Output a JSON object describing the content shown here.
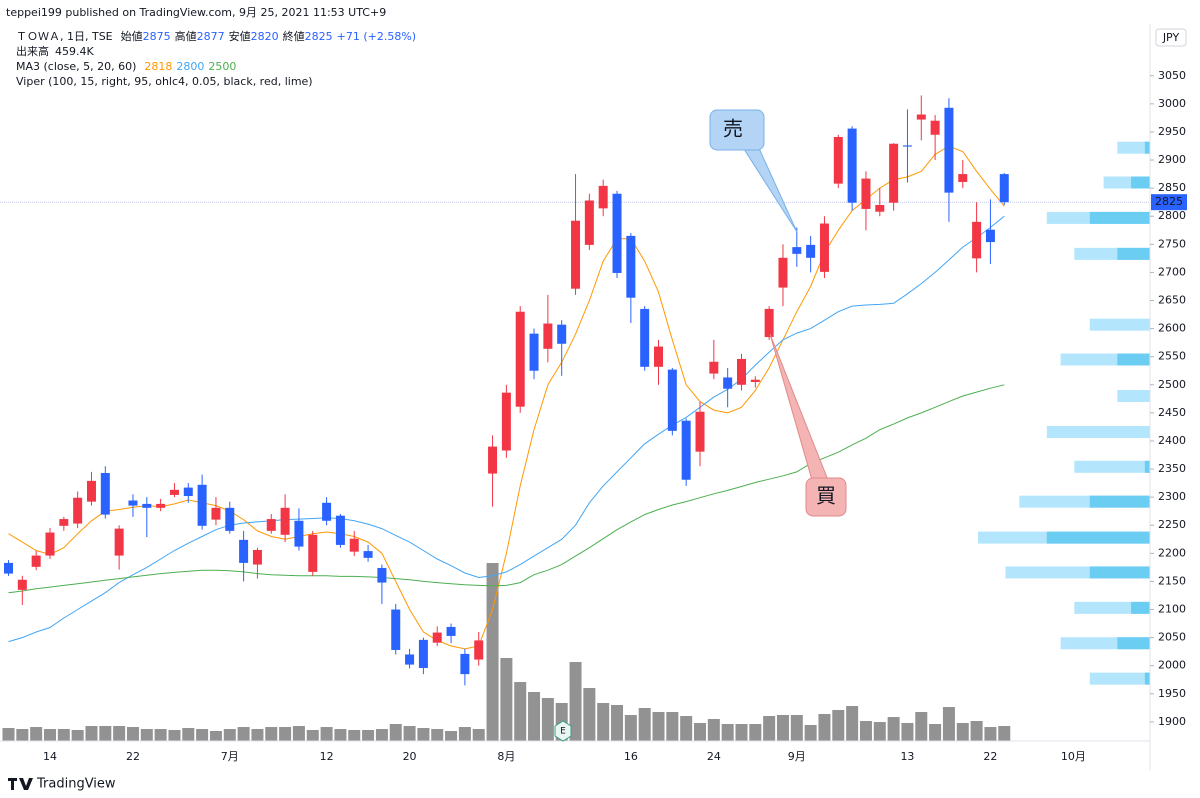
{
  "chart_data": {
    "type": "candlestick",
    "published": "teppei199 published on TradingView.com, 9月 25, 2021 11:53 UTC+9",
    "title": "ＴＯＷＡ, 1日, TSE",
    "ohlc_labels": [
      "始値",
      "高値",
      "安値",
      "終値"
    ],
    "change_text": "+71 (+2.58%)",
    "currency": "JPY",
    "up_color": "#f23645",
    "down_color": "#2962ff",
    "categories": [
      null,
      null,
      null,
      "14",
      null,
      null,
      null,
      null,
      null,
      "22",
      null,
      null,
      null,
      null,
      null,
      null,
      "7月",
      null,
      null,
      null,
      null,
      null,
      null,
      "12",
      null,
      null,
      null,
      null,
      null,
      "20",
      null,
      null,
      null,
      null,
      null,
      null,
      "8月",
      null,
      null,
      null,
      null,
      null,
      null,
      null,
      null,
      "16",
      null,
      null,
      null,
      null,
      null,
      "24",
      null,
      null,
      null,
      null,
      null,
      "9月",
      null,
      null,
      null,
      null,
      null,
      null,
      null,
      "13",
      null,
      null,
      null,
      null,
      null,
      "22",
      null,
      null,
      null,
      null,
      null,
      "10月",
      null,
      null,
      null,
      null,
      null
    ],
    "open": [
      2183,
      2135,
      2176,
      2196,
      2249,
      2253,
      2292,
      2343,
      2196,
      2294,
      2288,
      2281,
      2304,
      2317,
      2322,
      2260,
      2281,
      2224,
      2180,
      2240,
      2233,
      2258,
      2167,
      2290,
      2267,
      2203,
      2204,
      2174,
      2100,
      2020,
      2046,
      2041,
      2069,
      2021,
      2011,
      2342,
      2383,
      2461,
      2591,
      2564,
      2607,
      2671,
      2749,
      2814,
      2840,
      2765,
      2635,
      2532,
      2527,
      2436,
      2381,
      2520,
      2513,
      2500,
      2505,
      2585,
      2673,
      2745,
      2749,
      2701,
      2858,
      2956,
      2813,
      2808,
      2824,
      2926,
      2972,
      2945,
      2993,
      2861,
      2725,
      2776,
      2875,
      null,
      null,
      null,
      null,
      null,
      null,
      null,
      null,
      null,
      null
    ],
    "high": [
      2188,
      2160,
      2205,
      2245,
      2265,
      2310,
      2345,
      2355,
      2250,
      2305,
      2300,
      2297,
      2325,
      2325,
      2340,
      2300,
      2292,
      2240,
      2210,
      2270,
      2305,
      2280,
      2240,
      2300,
      2270,
      2240,
      2215,
      2180,
      2110,
      2030,
      2050,
      2070,
      2075,
      2030,
      2060,
      2410,
      2500,
      2640,
      2600,
      2660,
      2615,
      2875,
      2840,
      2865,
      2845,
      2770,
      2640,
      2580,
      2530,
      2440,
      2470,
      2580,
      2530,
      2555,
      2515,
      2640,
      2750,
      2780,
      2765,
      2800,
      2945,
      2960,
      2880,
      2850,
      2930,
      2990,
      3015,
      2980,
      3010,
      2900,
      2825,
      2830,
      2877,
      null,
      null,
      null,
      null,
      null,
      null,
      null,
      null,
      null,
      null
    ],
    "low": [
      2160,
      2108,
      2170,
      2190,
      2240,
      2245,
      2285,
      2262,
      2171,
      2265,
      2229,
      2275,
      2300,
      2290,
      2242,
      2250,
      2235,
      2150,
      2155,
      2235,
      2220,
      2205,
      2160,
      2250,
      2210,
      2195,
      2185,
      2110,
      2020,
      1995,
      1985,
      2035,
      2040,
      1965,
      2000,
      2283,
      2370,
      2450,
      2510,
      2540,
      2516,
      2660,
      2740,
      2800,
      2690,
      2610,
      2525,
      2500,
      2410,
      2320,
      2355,
      2510,
      2460,
      2490,
      2495,
      2580,
      2640,
      2710,
      2700,
      2690,
      2850,
      2810,
      2775,
      2800,
      2810,
      2860,
      2935,
      2900,
      2790,
      2850,
      2700,
      2715,
      2820,
      null,
      null,
      null,
      null,
      null,
      null,
      null,
      null,
      null,
      null
    ],
    "close": [
      2164,
      2153,
      2196,
      2237,
      2261,
      2299,
      2329,
      2269,
      2244,
      2285,
      2281,
      2288,
      2313,
      2302,
      2249,
      2281,
      2240,
      2183,
      2206,
      2261,
      2281,
      2212,
      2233,
      2258,
      2215,
      2226,
      2192,
      2148,
      2028,
      2002,
      1996,
      2059,
      2053,
      1985,
      2045,
      2390,
      2486,
      2630,
      2525,
      2609,
      2573,
      2792,
      2828,
      2854,
      2699,
      2655,
      2532,
      2568,
      2418,
      2331,
      2452,
      2541,
      2493,
      2546,
      2509,
      2635,
      2726,
      2733,
      2726,
      2787,
      2941,
      2824,
      2867,
      2820,
      2929,
      2924,
      2981,
      2970,
      2842,
      2875,
      2790,
      2754,
      2825,
      null,
      null,
      null,
      null,
      null,
      null,
      null,
      null,
      null,
      null
    ],
    "volume": {
      "name": "出来高",
      "value_label": "459.4K",
      "color": "#7f7f7f",
      "values": [
        398000,
        367000,
        428000,
        367000,
        367000,
        337000,
        459000,
        459000,
        459000,
        428000,
        367000,
        367000,
        337000,
        398000,
        367000,
        306000,
        367000,
        428000,
        367000,
        428000,
        428000,
        459000,
        337000,
        428000,
        367000,
        337000,
        337000,
        367000,
        520000,
        459000,
        398000,
        367000,
        306000,
        428000,
        367000,
        5447000,
        2540000,
        1805000,
        1499000,
        1316000,
        1163000,
        2417000,
        1622000,
        1163000,
        1102000,
        796000,
        1010000,
        887000,
        887000,
        765000,
        551000,
        673000,
        520000,
        520000,
        520000,
        765000,
        796000,
        796000,
        490000,
        826000,
        949000,
        1071000,
        612000,
        581000,
        734000,
        551000,
        887000,
        520000,
        1040000,
        551000,
        612000,
        428000,
        459400,
        null,
        null,
        null,
        null,
        null,
        null,
        null,
        null,
        null,
        null
      ]
    },
    "ma": {
      "name": "MA3 (close, 5, 20, 60)",
      "series": [
        {
          "color": "#ff9800",
          "values": [
            2235,
            2220,
            2205,
            2198,
            2210,
            2235,
            2258,
            2275,
            2278,
            2282,
            2285,
            2283,
            2288,
            2295,
            2290,
            2285,
            2275,
            2260,
            2240,
            2230,
            2225,
            2230,
            2235,
            2238,
            2235,
            2230,
            2220,
            2200,
            2150,
            2100,
            2060,
            2045,
            2035,
            2030,
            2035,
            2100,
            2200,
            2320,
            2420,
            2500,
            2540,
            2590,
            2650,
            2720,
            2760,
            2760,
            2720,
            2665,
            2580,
            2500,
            2470,
            2455,
            2450,
            2460,
            2490,
            2530,
            2580,
            2630,
            2675,
            2735,
            2775,
            2810,
            2830,
            2850,
            2865,
            2870,
            2880,
            2910,
            2925,
            2915,
            2880,
            2848,
            2818,
            null,
            null,
            null,
            null,
            null,
            null,
            null,
            null,
            null,
            null
          ]
        },
        {
          "color": "#42a5f5",
          "values": [
            2043,
            2050,
            2060,
            2068,
            2085,
            2100,
            2115,
            2130,
            2148,
            2162,
            2175,
            2190,
            2205,
            2218,
            2230,
            2242,
            2250,
            2254,
            2256,
            2258,
            2260,
            2261,
            2262,
            2263,
            2262,
            2258,
            2252,
            2244,
            2232,
            2220,
            2205,
            2190,
            2178,
            2165,
            2157,
            2160,
            2167,
            2180,
            2195,
            2210,
            2225,
            2250,
            2290,
            2320,
            2345,
            2370,
            2395,
            2412,
            2428,
            2442,
            2460,
            2478,
            2492,
            2510,
            2535,
            2558,
            2580,
            2592,
            2600,
            2615,
            2630,
            2640,
            2642,
            2643,
            2645,
            2662,
            2680,
            2700,
            2722,
            2745,
            2762,
            2780,
            2800,
            null,
            null,
            null,
            null,
            null,
            null,
            null,
            null,
            null,
            null
          ]
        },
        {
          "color": "#4caf50",
          "values": [
            2130,
            2133,
            2137,
            2140,
            2143,
            2146,
            2149,
            2152,
            2155,
            2158,
            2161,
            2164,
            2166,
            2168,
            2170,
            2170,
            2169,
            2167,
            2164,
            2162,
            2161,
            2160,
            2160,
            2160,
            2159,
            2159,
            2158,
            2157,
            2155,
            2153,
            2150,
            2148,
            2146,
            2144,
            2143,
            2142,
            2143,
            2148,
            2162,
            2170,
            2180,
            2195,
            2210,
            2226,
            2242,
            2256,
            2269,
            2278,
            2286,
            2292,
            2299,
            2306,
            2312,
            2319,
            2326,
            2332,
            2338,
            2345,
            2360,
            2370,
            2380,
            2393,
            2405,
            2420,
            2430,
            2441,
            2450,
            2460,
            2470,
            2480,
            2487,
            2494,
            2500,
            null,
            null,
            null,
            null,
            null,
            null,
            null,
            null,
            null,
            null
          ]
        }
      ]
    },
    "profile": {
      "name": "Viper (100, 15, right, 95, ohlc4, 0.05, black, red, lime)",
      "color": "#b3e5fc",
      "part_color": "#6ccdf3",
      "levels": [
        2922,
        2860,
        2797,
        2733,
        2607,
        2545,
        2480,
        2416,
        2354,
        2292,
        2228,
        2166,
        2103,
        2040,
        1977
      ],
      "totals": [
        19,
        27,
        60,
        44,
        35,
        52,
        19,
        60,
        44,
        76,
        100,
        84,
        44,
        52,
        35
      ],
      "parts": [
        3,
        11,
        35,
        19,
        0,
        19,
        0,
        0,
        3,
        35,
        60,
        35,
        11,
        19,
        3
      ]
    },
    "ylim": [
      1866,
      3135
    ],
    "yticks": [
      1900,
      1950,
      2000,
      2050,
      2100,
      2150,
      2200,
      2250,
      2300,
      2350,
      2400,
      2450,
      2500,
      2550,
      2600,
      2650,
      2700,
      2750,
      2800,
      2850,
      2900,
      2950,
      3000,
      3050
    ],
    "annotations": [
      "売",
      "買"
    ],
    "earnings": "E",
    "footer": "TradingView"
  }
}
